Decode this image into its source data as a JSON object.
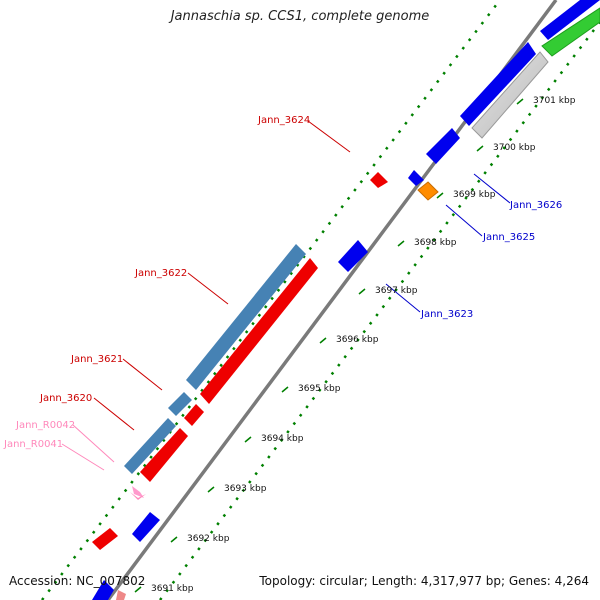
{
  "title": "Jannaschia sp. CCS1, complete genome",
  "footer": {
    "accession": "Accession: NC_007802",
    "summary": "Topology: circular; Length: 4,317,977 bp; Genes: 4,264"
  },
  "colors": {
    "forward_cds": "#0000ee",
    "reverse_cds": "#ee0000",
    "pseudo_gene": "#ff8c00",
    "other_gene": "#4682b4",
    "rna": "#ff99cc",
    "rrna_green": "#33cc33",
    "grey_feature": "#c8c8c8",
    "backbone": "#808080",
    "tick": "#008000"
  },
  "ticks": [
    "3691 kbp",
    "3692 kbp",
    "3693 kbp",
    "3694 kbp",
    "3695 kbp",
    "3696 kbp",
    "3697 kbp",
    "3698 kbp",
    "3699 kbp",
    "3700 kbp",
    "3701 kbp"
  ],
  "gene_labels": [
    {
      "id": "Jann_3624",
      "name": "label-jann-3624",
      "color": "#cc0000"
    },
    {
      "id": "Jann_3622",
      "name": "label-jann-3622",
      "color": "#cc0000"
    },
    {
      "id": "Jann_3621",
      "name": "label-jann-3621",
      "color": "#cc0000"
    },
    {
      "id": "Jann_3620",
      "name": "label-jann-3620",
      "color": "#cc0000"
    },
    {
      "id": "Jann_R0042",
      "name": "label-jann-r0042",
      "color": "#ff88bb"
    },
    {
      "id": "Jann_R0041",
      "name": "label-jann-r0041",
      "color": "#ff88bb"
    },
    {
      "id": "Jann_3626",
      "name": "label-jann-3626",
      "color": "#0000cc"
    },
    {
      "id": "Jann_3625",
      "name": "label-jann-3625",
      "color": "#0000cc"
    },
    {
      "id": "Jann_3623",
      "name": "label-jann-3623",
      "color": "#0000cc"
    }
  ]
}
